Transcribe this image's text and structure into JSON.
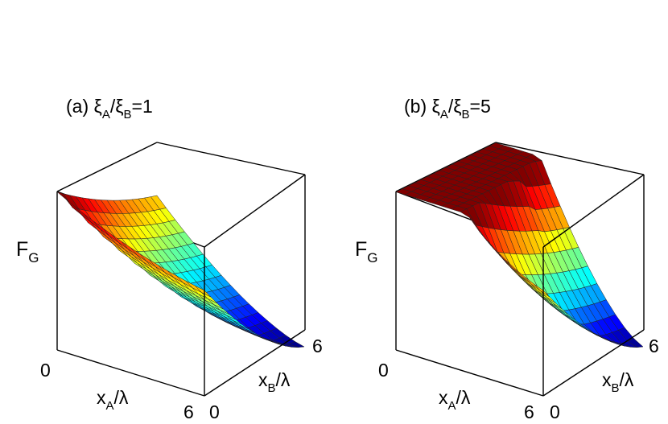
{
  "chart_data": [
    {
      "type": "surface",
      "title": {
        "prefix": "(a) ",
        "sym1": "ξ",
        "sub1": "A",
        "slash": "/",
        "sym2": "ξ",
        "sub2": "B",
        "suffix": "=1"
      },
      "zlabel": {
        "main": "F",
        "sub": "G"
      },
      "xlabel": {
        "main": "x",
        "sub": "A",
        "suffix": "/λ"
      },
      "ylabel": {
        "main": "x",
        "sub": "B",
        "suffix": "/λ"
      },
      "x_ticks": [
        "0",
        "6"
      ],
      "y_ticks": [
        "0",
        "6"
      ],
      "xlim": [
        0,
        6
      ],
      "ylim": [
        0,
        6
      ],
      "ratio": 1,
      "colormap": "jet"
    },
    {
      "type": "surface",
      "title": {
        "prefix": "(b) ",
        "sym1": "ξ",
        "sub1": "A",
        "slash": "/",
        "sym2": "ξ",
        "sub2": "B",
        "suffix": "=5"
      },
      "zlabel": {
        "main": "F",
        "sub": "G"
      },
      "xlabel": {
        "main": "x",
        "sub": "A",
        "suffix": "/λ"
      },
      "ylabel": {
        "main": "x",
        "sub": "B",
        "suffix": "/λ"
      },
      "x_ticks": [
        "0",
        "6"
      ],
      "y_ticks": [
        "0",
        "6"
      ],
      "xlim": [
        0,
        6
      ],
      "ylim": [
        0,
        6
      ],
      "ratio": 5,
      "colormap": "jet"
    }
  ]
}
